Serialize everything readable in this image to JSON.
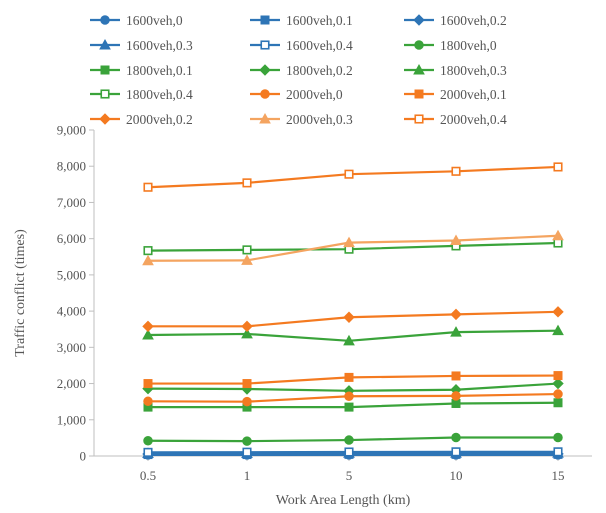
{
  "chart_data": {
    "type": "line",
    "xlabel": "Work Area Length (km)",
    "ylabel": "Traffic conflict (times)",
    "categories": [
      "0.5",
      "1",
      "5",
      "10",
      "15"
    ],
    "ylim": [
      0,
      9000
    ],
    "yticks": [
      "0",
      "1,000",
      "2,000",
      "3,000",
      "4,000",
      "5,000",
      "6,000",
      "7,000",
      "8,000",
      "9,000"
    ],
    "grid": false,
    "legend_position": "top",
    "series": [
      {
        "name": "1600veh,0",
        "color": "#2E75B6",
        "marker": "circle",
        "values": [
          30,
          30,
          30,
          30,
          30
        ]
      },
      {
        "name": "1600veh,0.1",
        "color": "#2E75B6",
        "marker": "square",
        "values": [
          40,
          40,
          45,
          45,
          45
        ]
      },
      {
        "name": "1600veh,0.2",
        "color": "#2E75B6",
        "marker": "diamond",
        "values": [
          55,
          55,
          60,
          60,
          60
        ]
      },
      {
        "name": "1600veh,0.3",
        "color": "#2E75B6",
        "marker": "triangle",
        "values": [
          70,
          70,
          75,
          75,
          80
        ]
      },
      {
        "name": "1600veh,0.4",
        "color": "#2E75B6",
        "marker": "square-open",
        "values": [
          100,
          105,
          110,
          115,
          115
        ]
      },
      {
        "name": "1800veh,0",
        "color": "#3AA33A",
        "marker": "circle",
        "values": [
          420,
          410,
          440,
          510,
          510
        ]
      },
      {
        "name": "1800veh,0.1",
        "color": "#3AA33A",
        "marker": "square",
        "values": [
          1350,
          1350,
          1350,
          1450,
          1470
        ]
      },
      {
        "name": "1800veh,0.2",
        "color": "#3AA33A",
        "marker": "diamond",
        "values": [
          1860,
          1850,
          1800,
          1830,
          2000
        ]
      },
      {
        "name": "1800veh,0.3",
        "color": "#3AA33A",
        "marker": "triangle",
        "values": [
          3340,
          3370,
          3180,
          3420,
          3460
        ]
      },
      {
        "name": "1800veh,0.4",
        "color": "#3AA33A",
        "marker": "square-open",
        "values": [
          5670,
          5690,
          5710,
          5800,
          5880
        ]
      },
      {
        "name": "2000veh,0",
        "color": "#F47A20",
        "marker": "circle",
        "values": [
          1510,
          1500,
          1650,
          1660,
          1710
        ]
      },
      {
        "name": "2000veh,0.1",
        "color": "#F47A20",
        "marker": "square",
        "values": [
          2000,
          2000,
          2170,
          2210,
          2220
        ]
      },
      {
        "name": "2000veh,0.2",
        "color": "#F47A20",
        "marker": "diamond",
        "values": [
          3580,
          3580,
          3830,
          3910,
          3980
        ]
      },
      {
        "name": "2000veh,0.3",
        "color": "#F4A460",
        "marker": "triangle",
        "values": [
          5390,
          5400,
          5890,
          5950,
          6080
        ]
      },
      {
        "name": "2000veh,0.4",
        "color": "#F47A20",
        "marker": "square-open",
        "values": [
          7420,
          7540,
          7780,
          7860,
          7980
        ]
      }
    ]
  }
}
